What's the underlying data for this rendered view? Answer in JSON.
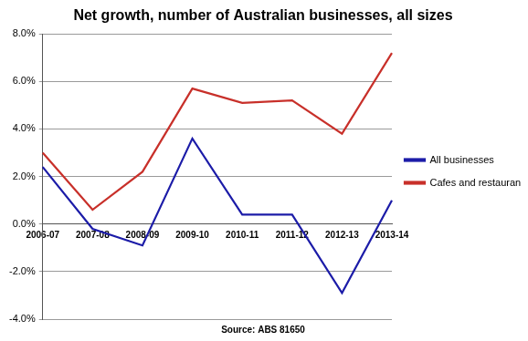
{
  "chart_data": {
    "type": "line",
    "title": "Net growth, number of Australian businesses, all sizes",
    "x_label": "Source: ABS 81650",
    "categories": [
      "2006-07",
      "2007-08",
      "2008-09",
      "2009-10",
      "2010-11",
      "2011-12",
      "2012-13",
      "2013-14"
    ],
    "series": [
      {
        "name": "All businesses",
        "color": "#1c1ca8",
        "values": [
          2.4,
          -0.2,
          -0.9,
          3.6,
          0.4,
          0.4,
          -2.9,
          1.0
        ]
      },
      {
        "name": "Cafes and restaurants",
        "color": "#c8302a",
        "values": [
          3.0,
          0.6,
          2.2,
          5.7,
          5.1,
          5.2,
          3.8,
          7.2
        ]
      }
    ],
    "ylim": [
      -4,
      8
    ],
    "yticks": [
      {
        "value": -4,
        "label": "-4.0%"
      },
      {
        "value": -2,
        "label": "-2.0%"
      },
      {
        "value": 0,
        "label": "0.0%"
      },
      {
        "value": 2,
        "label": "2.0%"
      },
      {
        "value": 4,
        "label": "4.0%"
      },
      {
        "value": 6,
        "label": "6.0%"
      },
      {
        "value": 8,
        "label": "8.0%"
      }
    ],
    "grid": true,
    "legend": "right"
  }
}
